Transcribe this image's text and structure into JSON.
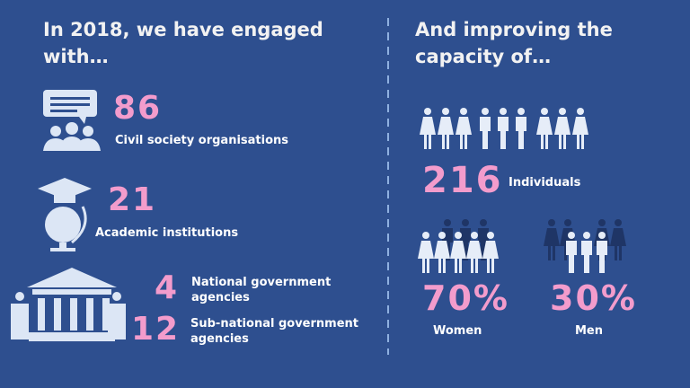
{
  "left": {
    "title": "In 2018, we have engaged with…",
    "items": [
      {
        "value": "86",
        "label": "Civil society organisations"
      },
      {
        "value": "21",
        "label": "Academic institutions"
      },
      {
        "value": "4",
        "label": "National government agencies"
      },
      {
        "value": "12",
        "label": "Sub-national government agencies"
      }
    ]
  },
  "right": {
    "title": "And improving the capacity of…",
    "total": {
      "value": "216",
      "label": "Individuals"
    },
    "split": [
      {
        "value": "70%",
        "label": "Women"
      },
      {
        "value": "30%",
        "label": "Men"
      }
    ]
  }
}
